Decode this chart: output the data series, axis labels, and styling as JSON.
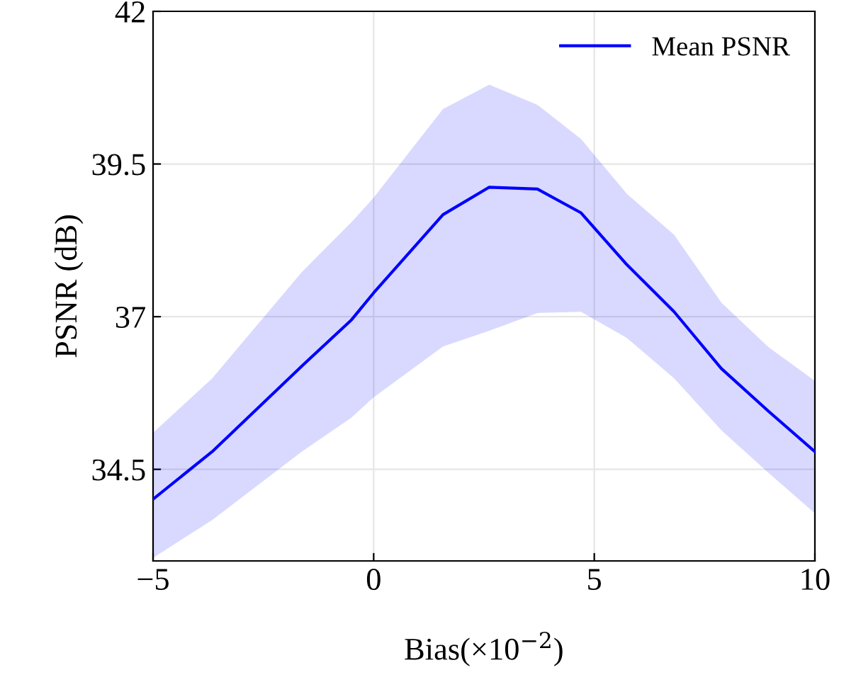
{
  "chart_data": {
    "type": "line",
    "xlabel": "Bias(×10$^{−2}$)",
    "ylabel": "PSNR (dB)",
    "xlim": [
      -5,
      10
    ],
    "xticks": [
      {
        "value": -5,
        "label": "−5"
      },
      0,
      5,
      10
    ],
    "ylim": [
      33,
      42
    ],
    "yticks": [
      {
        "value": 34.5,
        "label": "34.5"
      },
      37,
      {
        "value": 39.5,
        "label": "39.5"
      },
      42
    ],
    "grid": true,
    "legend": "top right",
    "marker": "none",
    "line_style": "solid",
    "series": [
      {
        "name": "Mean PSNR",
        "color": "#0000ff",
        "x": [
          -5,
          -3.66,
          -1.63,
          -0.5,
          0,
          1.57,
          2.62,
          3.71,
          4.7,
          5.74,
          6.81,
          7.88,
          8.95,
          10
        ],
        "values": [
          34.01,
          34.79,
          36.19,
          36.95,
          37.39,
          38.67,
          39.12,
          39.09,
          38.7,
          37.85,
          37.08,
          36.15,
          35.45,
          34.79
        ],
        "upper": [
          35.1,
          35.99,
          37.73,
          38.55,
          38.95,
          40.4,
          40.8,
          40.47,
          39.91,
          39.01,
          38.34,
          37.23,
          36.5,
          35.95
        ],
        "lower": [
          33.05,
          33.67,
          34.79,
          35.35,
          35.68,
          36.51,
          36.77,
          37.06,
          37.08,
          36.65,
          35.99,
          35.14,
          34.44,
          33.78
        ]
      }
    ]
  }
}
